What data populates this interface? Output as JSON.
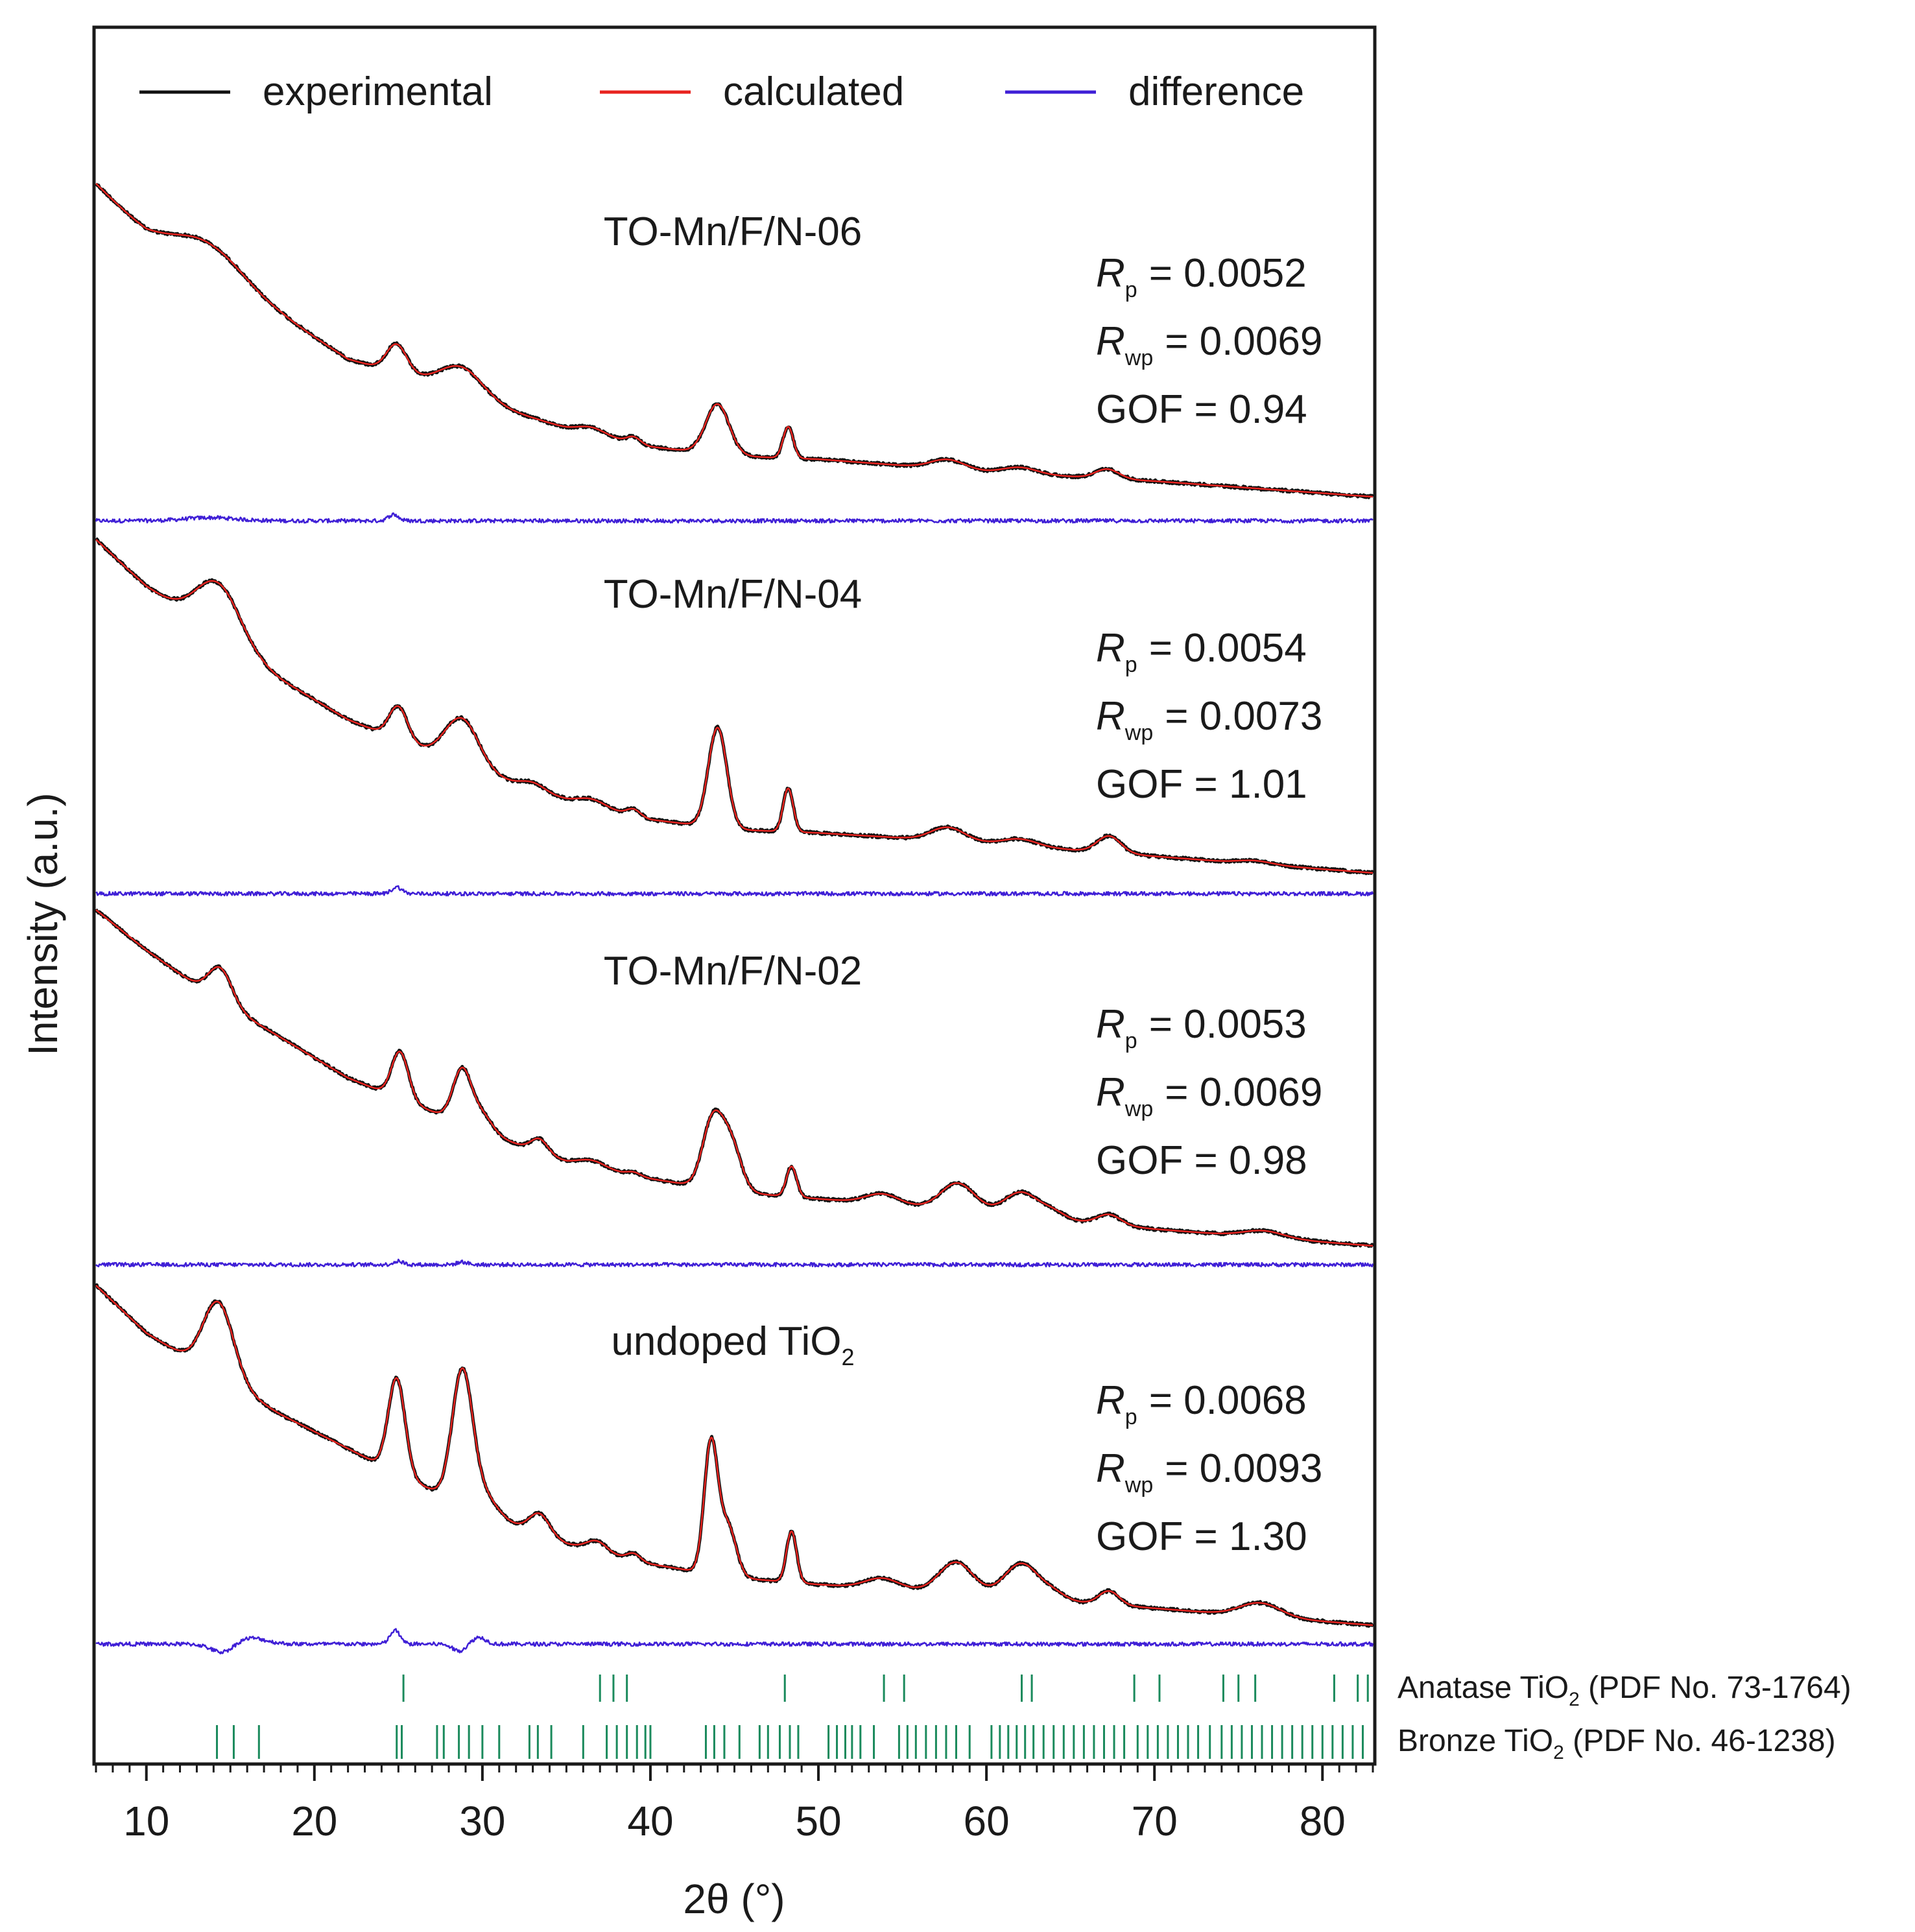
{
  "chart_data": {
    "type": "line",
    "title": "",
    "xlabel": "2θ (°)",
    "ylabel": "Intensity (a.u.)",
    "xlim": [
      7,
      83
    ],
    "xticks_major": [
      10,
      20,
      30,
      40,
      50,
      60,
      70,
      80
    ],
    "xticks_minor_step": 1,
    "legend": {
      "placement": "top",
      "entries": [
        {
          "name": "experimental",
          "color": "#111111"
        },
        {
          "name": "calculated",
          "color": "#e8231f"
        },
        {
          "name": "difference",
          "color": "#3f1fd6"
        }
      ]
    },
    "panels": [
      {
        "sample": "TO-Mn/F/N-06",
        "rp_label": "R",
        "rp_sub": "p",
        "rp_value": "= 0.0052",
        "rwp_label": "R",
        "rwp_sub": "wp",
        "rwp_value": "= 0.0069",
        "gof": "GOF = 0.94",
        "background": [
          [
            7,
            1.0
          ],
          [
            10,
            0.84
          ],
          [
            14,
            0.7
          ],
          [
            18,
            0.58
          ],
          [
            22,
            0.44
          ],
          [
            26,
            0.38
          ],
          [
            30,
            0.3
          ],
          [
            35,
            0.22
          ],
          [
            40,
            0.16
          ],
          [
            45,
            0.13
          ],
          [
            50,
            0.12
          ],
          [
            60,
            0.08
          ],
          [
            70,
            0.05
          ],
          [
            83,
            0.0
          ]
        ],
        "peaks": [
          [
            13.8,
            0.1,
            2.0
          ],
          [
            24.9,
            0.09,
            0.6
          ],
          [
            28.8,
            0.09,
            1.3
          ],
          [
            36.5,
            0.02,
            0.8
          ],
          [
            39.0,
            0.02,
            0.4
          ],
          [
            44.0,
            0.16,
            0.7
          ],
          [
            48.2,
            0.1,
            0.3
          ],
          [
            57.7,
            0.03,
            1.0
          ],
          [
            62.0,
            0.02,
            1.0
          ],
          [
            67.2,
            0.03,
            0.7
          ]
        ],
        "diff_features": [
          [
            13.8,
            0.01,
            1.5
          ],
          [
            24.7,
            0.02,
            0.3
          ]
        ]
      },
      {
        "sample": "TO-Mn/F/N-04",
        "rp_label": "R",
        "rp_sub": "p",
        "rp_value": "= 0.0054",
        "rwp_label": "R",
        "rwp_sub": "wp",
        "rwp_value": "= 0.0073",
        "gof": "GOF = 1.01",
        "background": [
          [
            7,
            1.0
          ],
          [
            10,
            0.86
          ],
          [
            14,
            0.72
          ],
          [
            18,
            0.58
          ],
          [
            22,
            0.46
          ],
          [
            26,
            0.38
          ],
          [
            30,
            0.3
          ],
          [
            35,
            0.22
          ],
          [
            40,
            0.16
          ],
          [
            45,
            0.13
          ],
          [
            50,
            0.12
          ],
          [
            60,
            0.09
          ],
          [
            70,
            0.05
          ],
          [
            83,
            0.0
          ]
        ],
        "peaks": [
          [
            14.3,
            0.16,
            1.3
          ],
          [
            25.0,
            0.1,
            0.55
          ],
          [
            28.8,
            0.14,
            1.0
          ],
          [
            33.0,
            0.02,
            0.7
          ],
          [
            36.5,
            0.02,
            0.8
          ],
          [
            39.0,
            0.02,
            0.4
          ],
          [
            44.0,
            0.3,
            0.55
          ],
          [
            48.2,
            0.13,
            0.3
          ],
          [
            57.7,
            0.04,
            1.0
          ],
          [
            62.0,
            0.02,
            1.0
          ],
          [
            67.3,
            0.05,
            0.7
          ],
          [
            76.0,
            0.01,
            1.0
          ]
        ],
        "diff_features": [
          [
            24.9,
            0.02,
            0.3
          ]
        ]
      },
      {
        "sample": "TO-Mn/F/N-02",
        "rp_label": "R",
        "rp_sub": "p",
        "rp_value": "= 0.0053",
        "rwp_label": "R",
        "rwp_sub": "wp",
        "rwp_value": "= 0.0069",
        "gof": "GOF = 0.98",
        "background": [
          [
            7,
            1.0
          ],
          [
            10,
            0.88
          ],
          [
            14,
            0.74
          ],
          [
            18,
            0.62
          ],
          [
            22,
            0.5
          ],
          [
            26,
            0.42
          ],
          [
            30,
            0.34
          ],
          [
            35,
            0.25
          ],
          [
            40,
            0.2
          ],
          [
            45,
            0.16
          ],
          [
            50,
            0.14
          ],
          [
            60,
            0.1
          ],
          [
            70,
            0.05
          ],
          [
            83,
            0.0
          ]
        ],
        "peaks": [
          [
            14.4,
            0.1,
            0.7
          ],
          [
            25.1,
            0.14,
            0.5
          ],
          [
            28.8,
            0.16,
            0.55
          ],
          [
            30.0,
            0.05,
            0.6
          ],
          [
            33.4,
            0.04,
            0.5
          ],
          [
            36.5,
            0.02,
            0.8
          ],
          [
            39.0,
            0.01,
            0.4
          ],
          [
            43.7,
            0.2,
            0.6
          ],
          [
            44.8,
            0.14,
            0.6
          ],
          [
            48.4,
            0.09,
            0.3
          ],
          [
            53.8,
            0.03,
            1.0
          ],
          [
            58.3,
            0.08,
            1.0
          ],
          [
            62.1,
            0.07,
            1.0
          ],
          [
            64.0,
            0.02,
            0.7
          ],
          [
            67.3,
            0.03,
            0.7
          ],
          [
            76.5,
            0.02,
            1.2
          ]
        ],
        "diff_features": [
          [
            25.0,
            0.01,
            0.3
          ],
          [
            28.8,
            0.008,
            0.3
          ]
        ]
      },
      {
        "sample": "undoped TiO",
        "sample_sub": "2",
        "rp_label": "R",
        "rp_sub": "p",
        "rp_value": "= 0.0068",
        "rwp_label": "R",
        "rwp_sub": "wp",
        "rwp_value": "= 0.0093",
        "gof": "GOF = 1.30",
        "background": [
          [
            7,
            1.0
          ],
          [
            10,
            0.86
          ],
          [
            14,
            0.74
          ],
          [
            18,
            0.62
          ],
          [
            22,
            0.52
          ],
          [
            26,
            0.42
          ],
          [
            30,
            0.33
          ],
          [
            35,
            0.24
          ],
          [
            40,
            0.18
          ],
          [
            45,
            0.14
          ],
          [
            50,
            0.12
          ],
          [
            60,
            0.09
          ],
          [
            70,
            0.05
          ],
          [
            83,
            0.0
          ]
        ],
        "peaks": [
          [
            14.3,
            0.22,
            0.9
          ],
          [
            24.9,
            0.28,
            0.5
          ],
          [
            28.8,
            0.38,
            0.6
          ],
          [
            30.0,
            0.06,
            0.8
          ],
          [
            33.4,
            0.06,
            0.6
          ],
          [
            36.8,
            0.03,
            0.6
          ],
          [
            39.0,
            0.02,
            0.4
          ],
          [
            43.6,
            0.38,
            0.4
          ],
          [
            44.6,
            0.15,
            0.5
          ],
          [
            48.4,
            0.15,
            0.3
          ],
          [
            53.8,
            0.03,
            1.0
          ],
          [
            58.2,
            0.09,
            1.0
          ],
          [
            62.1,
            0.1,
            1.0
          ],
          [
            64.0,
            0.02,
            0.7
          ],
          [
            67.3,
            0.04,
            0.6
          ],
          [
            76.3,
            0.04,
            1.2
          ]
        ],
        "diff_features": [
          [
            14.6,
            -0.03,
            0.7
          ],
          [
            16.0,
            0.02,
            1.0
          ],
          [
            24.8,
            0.04,
            0.3
          ],
          [
            28.6,
            -0.02,
            0.4
          ],
          [
            29.8,
            0.02,
            0.4
          ]
        ]
      }
    ],
    "reference_patterns": [
      {
        "name": "Anatase TiO",
        "name_sub": "2",
        "name_rest": " (PDF No. 73-1764)",
        "color": "#1a8a5c",
        "positions": [
          25.3,
          37.0,
          37.8,
          38.6,
          48.0,
          53.9,
          55.1,
          62.1,
          62.7,
          68.8,
          70.3,
          74.1,
          75.0,
          76.0,
          80.7,
          82.1,
          82.7
        ]
      },
      {
        "name": "Bronze TiO",
        "name_sub": "2",
        "name_rest": " (PDF No. 46-1238)",
        "color": "#1a8a5c",
        "positions": [
          14.2,
          15.2,
          16.7,
          24.9,
          25.2,
          27.3,
          27.7,
          28.6,
          29.2,
          30.0,
          31.0,
          32.8,
          33.3,
          34.1,
          36.0,
          37.4,
          38.0,
          38.6,
          39.2,
          39.7,
          40.0,
          43.3,
          43.8,
          44.4,
          45.3,
          46.5,
          47.0,
          47.7,
          48.3,
          48.8,
          50.6,
          51.1,
          51.6,
          52.0,
          52.5,
          53.3,
          54.8,
          55.3,
          55.8,
          56.4,
          57.0,
          57.6,
          58.2,
          59.0,
          60.3,
          60.8,
          61.3,
          61.8,
          62.3,
          62.8,
          63.4,
          64.0,
          64.6,
          65.2,
          65.8,
          66.4,
          67.0,
          67.6,
          68.2,
          69.0,
          69.6,
          70.2,
          70.8,
          71.4,
          72.0,
          72.6,
          73.3,
          74.0,
          74.6,
          75.2,
          75.8,
          76.4,
          77.0,
          77.6,
          78.2,
          78.8,
          79.4,
          80.0,
          80.6,
          81.2,
          81.8,
          82.4
        ]
      }
    ]
  }
}
